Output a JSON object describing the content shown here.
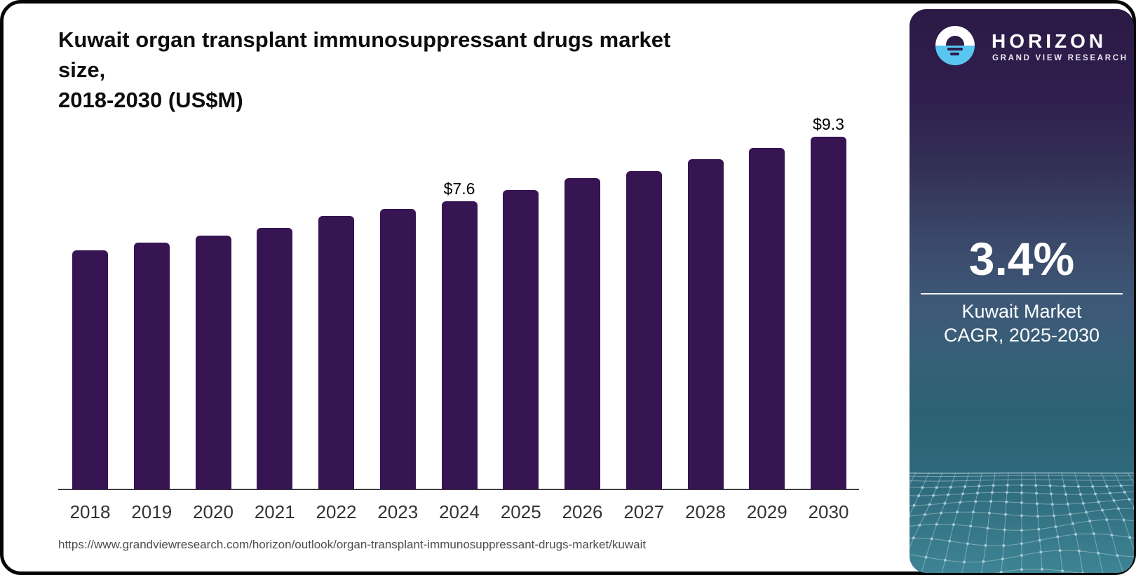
{
  "header": {
    "title_lines": [
      "Kuwait organ transplant immunosuppressant drugs market",
      "size,",
      "2018-2030 (US$M)"
    ]
  },
  "chart_data": {
    "type": "bar",
    "title": "Kuwait organ transplant immunosuppressant drugs market size, 2018-2030 (US$M)",
    "categories": [
      "2018",
      "2019",
      "2020",
      "2021",
      "2022",
      "2023",
      "2024",
      "2025",
      "2026",
      "2027",
      "2028",
      "2029",
      "2030"
    ],
    "values": [
      6.3,
      6.5,
      6.7,
      6.9,
      7.2,
      7.4,
      7.6,
      7.9,
      8.2,
      8.4,
      8.7,
      9.0,
      9.3
    ],
    "labeled_points": [
      {
        "category": "2024",
        "label": "$7.6"
      },
      {
        "category": "2030",
        "label": "$9.3"
      }
    ],
    "xlabel": "",
    "ylabel": "",
    "ylim": [
      0,
      9.8
    ],
    "grid": false,
    "legend": "none",
    "bar_color": "#371553",
    "axis_color": "#3d3d3d",
    "tick_color": "#333333"
  },
  "footer": {
    "source_url": "https://www.grandviewresearch.com/horizon/outlook/organ-transplant-immunosuppressant-drugs-market/kuwait"
  },
  "sidebar": {
    "brand_name": "HORIZON",
    "brand_subtitle": "GRAND VIEW RESEARCH",
    "stat_value": "3.4%",
    "stat_label_lines": [
      "Kuwait Market",
      "CAGR, 2025-2030"
    ],
    "colors": {
      "top": "#2B1A45",
      "middle": "#3D5170",
      "bottom": "#3E8494",
      "logo_blue": "#59C6F2",
      "text": "#FFFFFF"
    }
  }
}
